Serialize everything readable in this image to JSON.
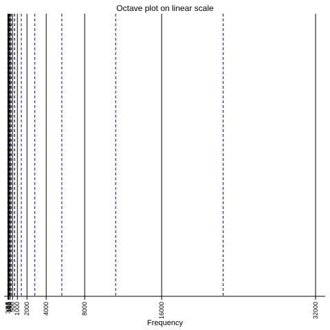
{
  "chart_data": {
    "type": "line",
    "title": "Octave plot on linear scale",
    "xlabel": "Frequency",
    "ylabel": "",
    "xlim": [
      -375,
      33000
    ],
    "x_ticks": [
      {
        "value": 16,
        "label": "16"
      },
      {
        "value": 31.5,
        "label": "31.5"
      },
      {
        "value": 63,
        "label": "63"
      },
      {
        "value": 125,
        "label": "125"
      },
      {
        "value": 250,
        "label": "250"
      },
      {
        "value": 500,
        "label": "500"
      },
      {
        "value": 1000,
        "label": "1000"
      },
      {
        "value": 2000,
        "label": "2000"
      },
      {
        "value": 4000,
        "label": "4000"
      },
      {
        "value": 8000,
        "label": "8000"
      },
      {
        "value": 16000,
        "label": "16000"
      },
      {
        "value": 32000,
        "label": "32000"
      }
    ],
    "series": [
      {
        "style": "solid",
        "color": "#000000",
        "x": [
          16,
          31.5,
          63,
          125,
          250,
          500,
          1000,
          2000,
          4000,
          8000,
          16000,
          32000
        ]
      },
      {
        "style": "dashed",
        "color": "#0000cc",
        "x": [
          22.4,
          44.7,
          89.1,
          178,
          355,
          708,
          1413,
          2818,
          5623,
          11220,
          22387
        ]
      },
      {
        "style": "dashed",
        "color": "#000000",
        "x": [
          11.2,
          22.4,
          44.7,
          89.1,
          178,
          355,
          708
        ]
      }
    ],
    "grid": false,
    "legend": "none"
  }
}
